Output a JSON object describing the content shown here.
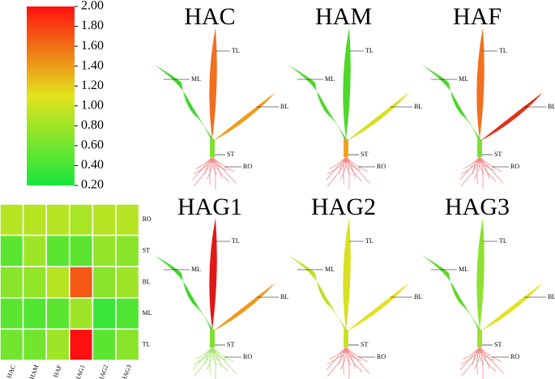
{
  "chart_data": {
    "type": "heatmap",
    "x_categories": [
      "HAC",
      "HAM",
      "HAF",
      "HAG1",
      "HAG2",
      "HAG3"
    ],
    "y_categories": [
      "RO",
      "ST",
      "BL",
      "ML",
      "TL"
    ],
    "values": [
      [
        0.9,
        0.9,
        0.9,
        0.85,
        0.9,
        0.9
      ],
      [
        0.5,
        0.8,
        0.5,
        0.5,
        0.75,
        0.7
      ],
      [
        0.7,
        0.75,
        0.9,
        1.7,
        0.7,
        0.8
      ],
      [
        0.5,
        0.45,
        0.5,
        0.8,
        0.35,
        0.45
      ],
      [
        0.6,
        0.6,
        0.8,
        2.0,
        0.5,
        0.7
      ]
    ],
    "zlim": [
      0.2,
      2.0
    ],
    "zticks": [
      {
        "value": 2.0,
        "label": "2.00"
      },
      {
        "value": 1.8,
        "label": "1.80"
      },
      {
        "value": 1.6,
        "label": "1.60"
      },
      {
        "value": 1.4,
        "label": "1.40"
      },
      {
        "value": 1.2,
        "label": "1.20"
      },
      {
        "value": 1.0,
        "label": "1.00"
      },
      {
        "value": 0.8,
        "label": "0.80"
      },
      {
        "value": 0.6,
        "label": "0.60"
      },
      {
        "value": 0.4,
        "label": "0.40"
      },
      {
        "value": 0.2,
        "label": "0.20"
      }
    ],
    "colormap": [
      "#18e63c",
      "#e2e41c",
      "#ff1010"
    ],
    "plant_organ_colors": [
      [
        "#f08a8a",
        "#7ee030",
        "#f29a1c",
        "#3ed82a",
        "#f07020"
      ],
      [
        "#f08a8a",
        "#f0a020",
        "#d8e020",
        "#4ed82a",
        "#4ed82a"
      ],
      [
        "#f08a8a",
        "#7ee030",
        "#e0301a",
        "#4ed82a",
        "#f07020"
      ],
      [
        "#a8e070",
        "#7ee030",
        "#f09a1c",
        "#3ed82a",
        "#e01818"
      ],
      [
        "#f08a8a",
        "#c8e028",
        "#e6e020",
        "#c0e020",
        "#d8e020"
      ],
      [
        "#f08a8a",
        "#a0e030",
        "#e6e020",
        "#60d82a",
        "#90e030"
      ]
    ]
  }
}
